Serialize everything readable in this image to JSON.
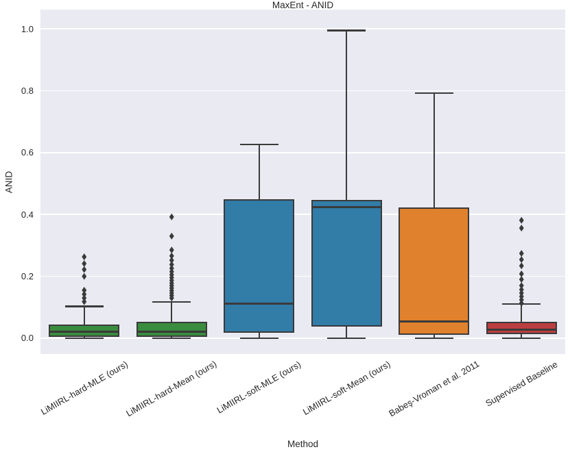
{
  "chart_data": {
    "type": "box",
    "title": "MaxEnt - ANID",
    "xlabel": "Method",
    "ylabel": "ANID",
    "ylim": [
      -0.051,
      1.062
    ],
    "yticks": [
      0.0,
      0.2,
      0.4,
      0.6,
      0.8,
      1.0
    ],
    "ytick_labels": [
      "0.0",
      "0.2",
      "0.4",
      "0.6",
      "0.8",
      "1.0"
    ],
    "grid": true,
    "categories": [
      "LiMIIRL-hard-MLE (ours)",
      "LiMIIRL-hard-Mean (ours)",
      "LiMIIRL-soft-MLE (ours)",
      "LiMIIRL-soft-Mean (ours)",
      "Babeş-Vroman et al. 2011",
      "Supervised Baseline"
    ],
    "series": [
      {
        "label": "LiMIIRL-hard-MLE (ours)",
        "color": "#3a8c3e",
        "whislo": 0.0,
        "q1": 0.005,
        "med": 0.02,
        "q3": 0.045,
        "whishi": 0.103,
        "fliers": [
          0.118,
          0.13,
          0.142,
          0.155,
          0.2,
          0.222,
          0.241,
          0.263
        ]
      },
      {
        "label": "LiMIIRL-hard-Mean (ours)",
        "color": "#3a8c3e",
        "whislo": 0.0,
        "q1": 0.004,
        "med": 0.02,
        "q3": 0.053,
        "whishi": 0.117,
        "fliers": [
          0.13,
          0.138,
          0.146,
          0.154,
          0.162,
          0.17,
          0.178,
          0.187,
          0.196,
          0.205,
          0.215,
          0.226,
          0.238,
          0.252,
          0.266,
          0.285,
          0.33,
          0.392
        ]
      },
      {
        "label": "LiMIIRL-soft-MLE (ours)",
        "color": "#327ca8",
        "whislo": 0.0,
        "q1": 0.018,
        "med": 0.111,
        "q3": 0.449,
        "whishi": 0.626,
        "fliers": []
      },
      {
        "label": "LiMIIRL-soft-Mean (ours)",
        "color": "#327ca8",
        "whislo": 0.0,
        "q1": 0.038,
        "med": 0.423,
        "q3": 0.447,
        "whishi": 0.995,
        "fliers": []
      },
      {
        "label": "Babeş-Vroman et al. 2011",
        "color": "#e0812e",
        "whislo": 0.0,
        "q1": 0.011,
        "med": 0.055,
        "q3": 0.423,
        "whishi": 0.792,
        "fliers": []
      },
      {
        "label": "Supervised Baseline",
        "color": "#bb3e40",
        "whislo": 0.0,
        "q1": 0.013,
        "med": 0.027,
        "q3": 0.053,
        "whishi": 0.111,
        "fliers": [
          0.113,
          0.124,
          0.135,
          0.146,
          0.157,
          0.17,
          0.19,
          0.208,
          0.234,
          0.254,
          0.274,
          0.356,
          0.381
        ]
      }
    ],
    "style": {
      "plot_bg": "#eaeaf2",
      "grid_color": "#ffffff",
      "line_color": "#3a3a3a",
      "text_color": "#262626",
      "figure_bg": "#ffffff"
    }
  }
}
